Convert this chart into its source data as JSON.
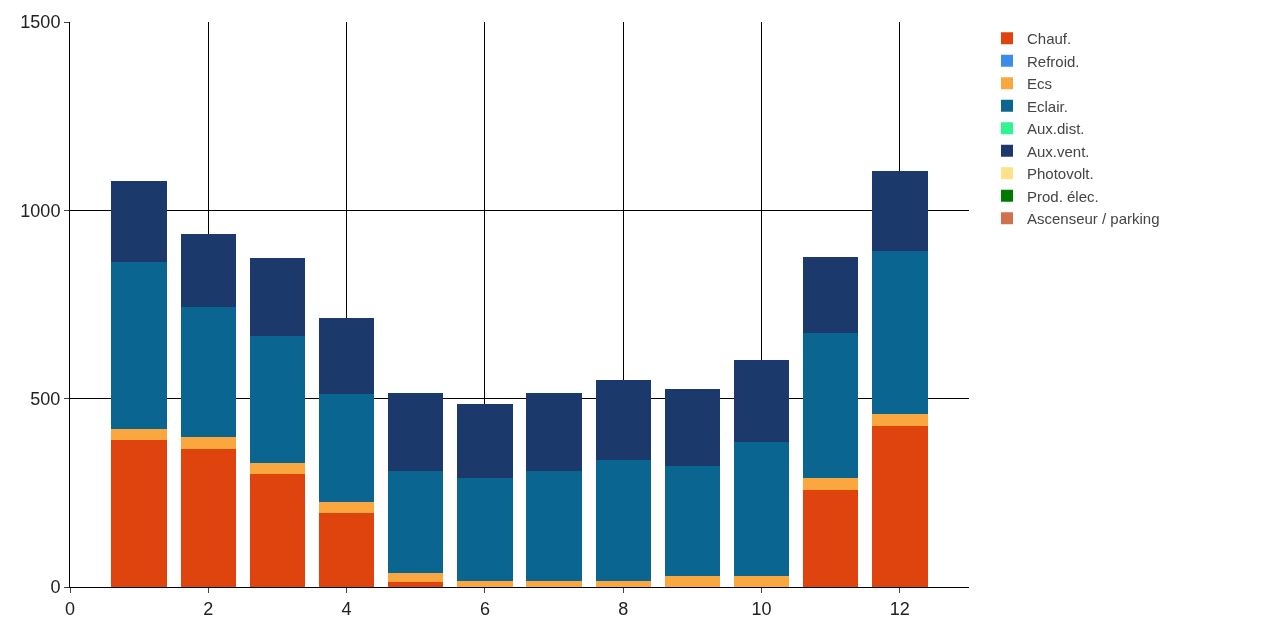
{
  "chart_data": {
    "type": "bar",
    "stacked": true,
    "x": [
      1,
      2,
      3,
      4,
      5,
      6,
      7,
      8,
      9,
      10,
      11,
      12
    ],
    "series": [
      {
        "name": "Chauf.",
        "color": "#e0440e",
        "values": [
          389,
          367,
          300,
          197,
          14,
          0,
          0,
          0,
          0,
          0,
          258,
          428
        ]
      },
      {
        "name": "Refroid.",
        "color": "#3b8ee8",
        "values": [
          0,
          0,
          0,
          0,
          0,
          0,
          0,
          0,
          0,
          0,
          0,
          0
        ]
      },
      {
        "name": "Ecs",
        "color": "#f9a73e",
        "values": [
          30,
          30,
          30,
          30,
          22,
          17,
          17,
          17,
          28,
          28,
          31,
          30
        ]
      },
      {
        "name": "Eclair.",
        "color": "#0a6690",
        "values": [
          444,
          347,
          336,
          286,
          272,
          272,
          292,
          319,
          292,
          358,
          386,
          433
        ]
      },
      {
        "name": "Aux.dist.",
        "color": "#2ef58f",
        "values": [
          0,
          0,
          0,
          0,
          0,
          0,
          0,
          0,
          0,
          0,
          0,
          0
        ]
      },
      {
        "name": "Aux.vent.",
        "color": "#1b3a6b",
        "values": [
          215,
          194,
          208,
          200,
          206,
          197,
          206,
          214,
          206,
          217,
          200,
          214
        ]
      },
      {
        "name": "Photovolt.",
        "color": "#fde28a",
        "values": [
          0,
          0,
          0,
          0,
          0,
          0,
          0,
          0,
          0,
          0,
          0,
          0
        ]
      },
      {
        "name": "Prod. élec.",
        "color": "#007a00",
        "values": [
          0,
          0,
          0,
          0,
          0,
          0,
          0,
          0,
          0,
          0,
          0,
          0
        ]
      },
      {
        "name": "Ascenseur / parking",
        "color": "#d0704e",
        "values": [
          0,
          0,
          0,
          0,
          0,
          0,
          0,
          0,
          0,
          0,
          0,
          0
        ]
      }
    ],
    "xlim": [
      0,
      13
    ],
    "xticks": [
      0,
      2,
      4,
      6,
      8,
      10,
      12
    ],
    "ylim": [
      0,
      1500
    ],
    "yticks": [
      0,
      500,
      1000,
      1500
    ],
    "grid": true,
    "legend": "top right"
  }
}
